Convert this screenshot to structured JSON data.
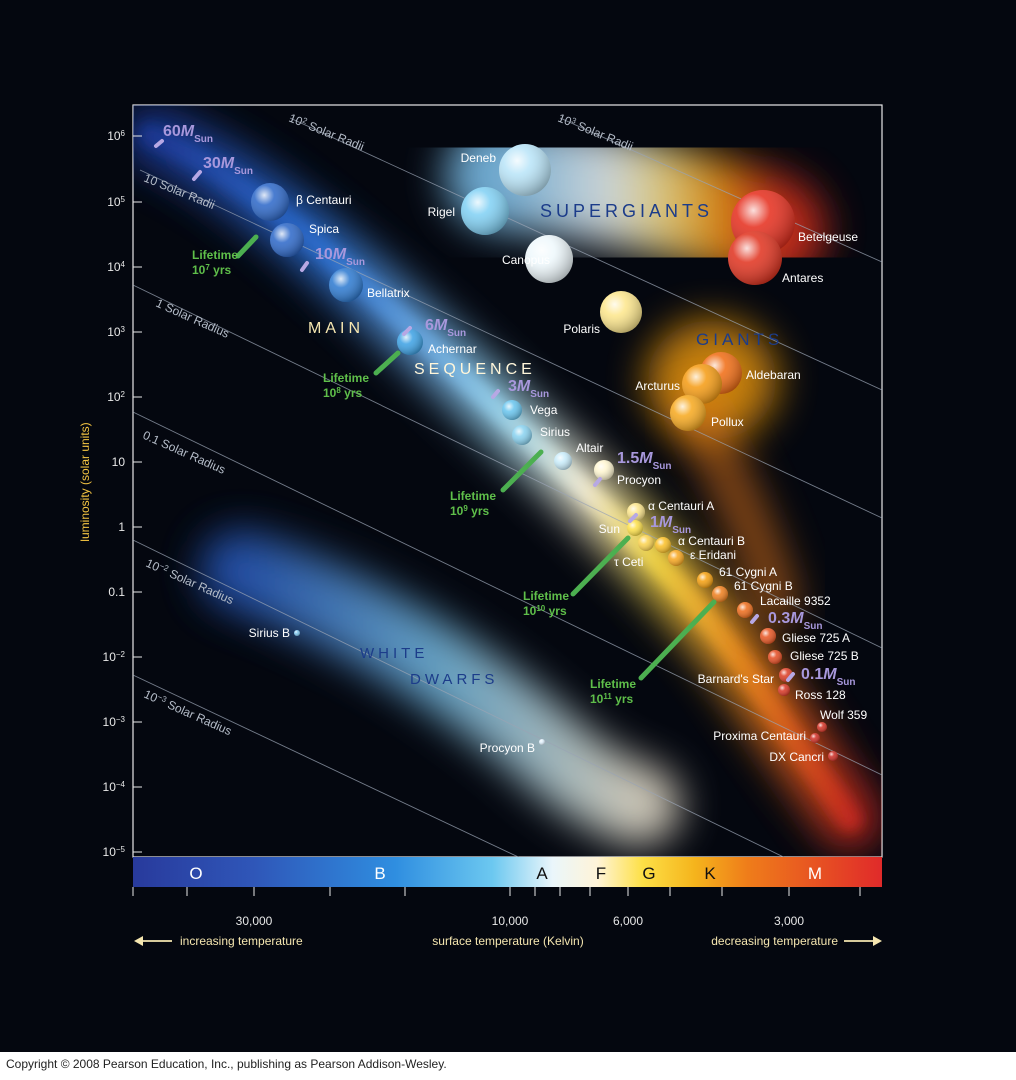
{
  "y_axis": {
    "label": "luminosity (solar units)",
    "ticks": [
      {
        "b": "10",
        "e": "6"
      },
      {
        "b": "10",
        "e": "5"
      },
      {
        "b": "10",
        "e": "4"
      },
      {
        "b": "10",
        "e": "3"
      },
      {
        "b": "10",
        "e": "2"
      },
      {
        "b": "10",
        "e": ""
      },
      {
        "b": "1",
        "e": ""
      },
      {
        "b": "0.1",
        "e": ""
      },
      {
        "b": "10",
        "e": "−2"
      },
      {
        "b": "10",
        "e": "−3"
      },
      {
        "b": "10",
        "e": "−4"
      },
      {
        "b": "10",
        "e": "−5"
      }
    ]
  },
  "x_axis": {
    "label": "surface temperature (Kelvin)",
    "ticks": [
      "30,000",
      "10,000",
      "6,000",
      "3,000"
    ],
    "left_note": "increasing temperature",
    "right_note": "decreasing temperature"
  },
  "spectral_classes": [
    "O",
    "B",
    "A",
    "F",
    "G",
    "K",
    "M"
  ],
  "regions": {
    "supergiants": "SUPERGIANTS",
    "giants": "GIANTS",
    "main": "MAIN",
    "sequence": "SEQUENCE",
    "white": "WHITE",
    "dwarfs": "DWARFS"
  },
  "radius_lines": [
    {
      "base": "10",
      "exp": "3",
      "suffix": " Solar Radii"
    },
    {
      "base": "10",
      "exp": "2",
      "suffix": " Solar Radii"
    },
    {
      "base": "10 Solar Radii",
      "exp": "",
      "suffix": ""
    },
    {
      "base": "1 Solar Radius",
      "exp": "",
      "suffix": ""
    },
    {
      "base": "0.1 Solar Radius",
      "exp": "",
      "suffix": ""
    },
    {
      "base": "10",
      "exp": "−2",
      "suffix": " Solar Radius"
    },
    {
      "base": "10",
      "exp": "−3",
      "suffix": " Solar Radius"
    }
  ],
  "masses": [
    {
      "num": "60",
      "sym": "M",
      "sub": "Sun"
    },
    {
      "num": "30",
      "sym": "M",
      "sub": "Sun"
    },
    {
      "num": "10",
      "sym": "M",
      "sub": "Sun"
    },
    {
      "num": "6",
      "sym": "M",
      "sub": "Sun"
    },
    {
      "num": "3",
      "sym": "M",
      "sub": "Sun"
    },
    {
      "num": "1.5",
      "sym": "M",
      "sub": "Sun"
    },
    {
      "num": "1",
      "sym": "M",
      "sub": "Sun"
    },
    {
      "num": "0.3",
      "sym": "M",
      "sub": "Sun"
    },
    {
      "num": "0.1",
      "sym": "M",
      "sub": "Sun"
    }
  ],
  "lifetimes": [
    {
      "label": "Lifetime",
      "base": "10",
      "exp": "7",
      "unit": " yrs"
    },
    {
      "label": "Lifetime",
      "base": "10",
      "exp": "8",
      "unit": " yrs"
    },
    {
      "label": "Lifetime",
      "base": "10",
      "exp": "9",
      "unit": " yrs"
    },
    {
      "label": "Lifetime",
      "base": "10",
      "exp": "10",
      "unit": " yrs"
    },
    {
      "label": "Lifetime",
      "base": "10",
      "exp": "11",
      "unit": " yrs"
    }
  ],
  "stars": [
    {
      "name": "β Centauri",
      "color": "#2a66c8"
    },
    {
      "name": "Spica",
      "color": "#2a66c8"
    },
    {
      "name": "Bellatrix",
      "color": "#2a78d0"
    },
    {
      "name": "Achernar",
      "color": "#3aa0e4"
    },
    {
      "name": "Vega",
      "color": "#66c4ee"
    },
    {
      "name": "Sirius",
      "color": "#88d2f0"
    },
    {
      "name": "Altair",
      "color": "#c8ecfa"
    },
    {
      "name": "Procyon",
      "color": "#fff6d0"
    },
    {
      "name": "α Centauri A",
      "color": "#fde68a"
    },
    {
      "name": "Sun",
      "color": "#fde047"
    },
    {
      "name": "α Centauri B",
      "color": "#fbbf24"
    },
    {
      "name": "ε Eridani",
      "color": "#f8a61c"
    },
    {
      "name": "τ Ceti",
      "color": "#fcd34d"
    },
    {
      "name": "61 Cygni A",
      "color": "#f59e0b"
    },
    {
      "name": "61 Cygni B",
      "color": "#ef7d1a"
    },
    {
      "name": "Lacaille 9352",
      "color": "#ee6a18"
    },
    {
      "name": "Gliese 725 A",
      "color": "#e85420"
    },
    {
      "name": "Gliese 725 B",
      "color": "#e44a20"
    },
    {
      "name": "Barnard's Star",
      "color": "#dc3b22"
    },
    {
      "name": "Ross 128",
      "color": "#d83422"
    },
    {
      "name": "Wolf 359",
      "color": "#d43022"
    },
    {
      "name": "Proxima Centauri",
      "color": "#d02c22"
    },
    {
      "name": "DX Cancri",
      "color": "#cc2a22"
    },
    {
      "name": "Deneb",
      "color": "#b8e4f8"
    },
    {
      "name": "Rigel",
      "color": "#7fd0f4"
    },
    {
      "name": "Canopus",
      "color": "#eef8fc"
    },
    {
      "name": "Polaris",
      "color": "#fde68a"
    },
    {
      "name": "Betelgeuse",
      "color": "#e52b1a"
    },
    {
      "name": "Antares",
      "color": "#e0301c"
    },
    {
      "name": "Aldebaran",
      "color": "#f06a10"
    },
    {
      "name": "Arcturus",
      "color": "#f59a10"
    },
    {
      "name": "Pollux",
      "color": "#f7a81c"
    },
    {
      "name": "Sirius B",
      "color": "#7ec8f0"
    },
    {
      "name": "Procyon B",
      "color": "#dceefa"
    }
  ],
  "copyright": "Copyright © 2008 Pearson Education, Inc., publishing as Pearson Addison-Wesley."
}
